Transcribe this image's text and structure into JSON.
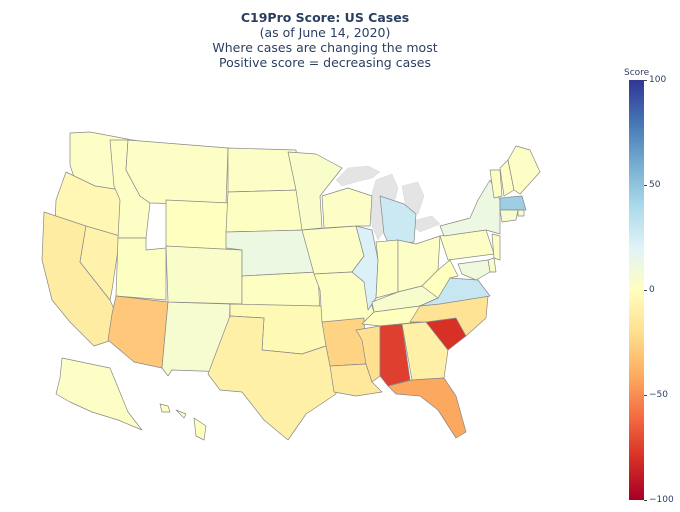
{
  "title": {
    "main": "C19Pro Score: US Cases",
    "line2": "(as of June 14, 2020)",
    "line3": "Where cases are changing the most",
    "line4": "Positive score = decreasing cases"
  },
  "colorbar": {
    "title": "Score",
    "range": [
      -100,
      100
    ],
    "ticks": [
      "100",
      "50",
      "0",
      "−50",
      "−100"
    ],
    "tick_values": [
      100,
      50,
      0,
      -50,
      -100
    ],
    "colors": [
      "#313695",
      "#4575b4",
      "#74add1",
      "#abd9e9",
      "#e0f3f8",
      "#ffffbf",
      "#fee090",
      "#fdae61",
      "#f46d43",
      "#d73027",
      "#a50026"
    ]
  },
  "map_data": {
    "scale": "RdYlBu",
    "states": [
      {
        "code": "WA",
        "score": 2
      },
      {
        "code": "OR",
        "score": -5
      },
      {
        "code": "CA",
        "score": -12
      },
      {
        "code": "NV",
        "score": -8
      },
      {
        "code": "ID",
        "score": 2
      },
      {
        "code": "MT",
        "score": 2
      },
      {
        "code": "WY",
        "score": 0
      },
      {
        "code": "UT",
        "score": 1
      },
      {
        "code": "AZ",
        "score": -30
      },
      {
        "code": "NM",
        "score": 6
      },
      {
        "code": "CO",
        "score": 4
      },
      {
        "code": "ND",
        "score": 2
      },
      {
        "code": "SD",
        "score": 1
      },
      {
        "code": "NE",
        "score": 12
      },
      {
        "code": "KS",
        "score": 1
      },
      {
        "code": "OK",
        "score": -4
      },
      {
        "code": "TX",
        "score": -10
      },
      {
        "code": "MN",
        "score": 4
      },
      {
        "code": "IA",
        "score": 2
      },
      {
        "code": "MO",
        "score": 1
      },
      {
        "code": "AR",
        "score": -25
      },
      {
        "code": "LA",
        "score": -15
      },
      {
        "code": "WI",
        "score": 2
      },
      {
        "code": "IL",
        "score": 22
      },
      {
        "code": "MI",
        "score": 28
      },
      {
        "code": "IN",
        "score": 1
      },
      {
        "code": "OH",
        "score": 2
      },
      {
        "code": "KY",
        "score": 5
      },
      {
        "code": "TN",
        "score": 0
      },
      {
        "code": "MS",
        "score": -20
      },
      {
        "code": "AL",
        "score": -75
      },
      {
        "code": "GA",
        "score": -10
      },
      {
        "code": "FL",
        "score": -42
      },
      {
        "code": "SC",
        "score": -80
      },
      {
        "code": "NC",
        "score": -18
      },
      {
        "code": "VA",
        "score": 30
      },
      {
        "code": "WV",
        "score": 0
      },
      {
        "code": "PA",
        "score": 2
      },
      {
        "code": "NY",
        "score": 12
      },
      {
        "code": "VT",
        "score": 1
      },
      {
        "code": "NH",
        "score": 2
      },
      {
        "code": "ME",
        "score": 2
      },
      {
        "code": "MA",
        "score": 45
      },
      {
        "code": "RI",
        "score": 5
      },
      {
        "code": "CT",
        "score": 6
      },
      {
        "code": "NJ",
        "score": 2
      },
      {
        "code": "DE",
        "score": 3
      },
      {
        "code": "MD",
        "score": 10
      },
      {
        "code": "AK",
        "score": 2
      },
      {
        "code": "HI",
        "score": 0
      }
    ]
  }
}
